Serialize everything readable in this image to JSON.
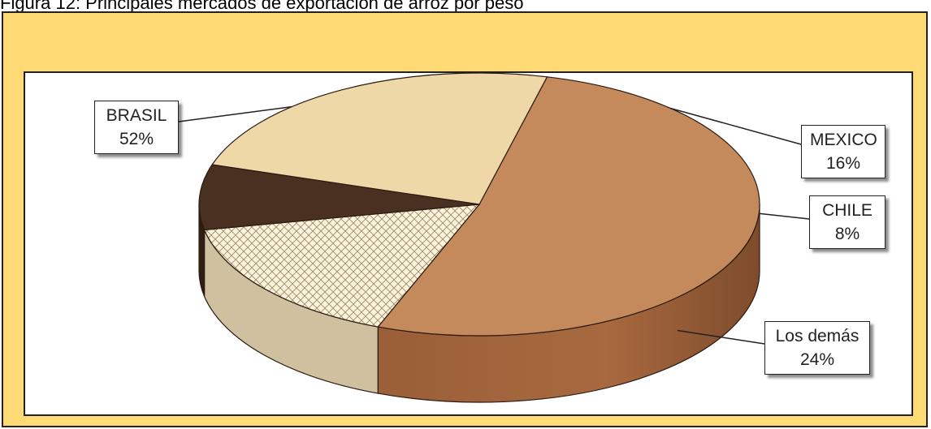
{
  "caption": "Figura 12: Principales mercados de exportación de arroz por peso",
  "chart_data": {
    "type": "pie",
    "title": "",
    "slices": [
      {
        "name": "BRASIL",
        "value": 52,
        "label": "52%",
        "color": "#c58a5c"
      },
      {
        "name": "MEXICO",
        "value": 16,
        "label": "16%",
        "color": "#fbf3dc"
      },
      {
        "name": "CHILE",
        "value": 8,
        "label": "8%",
        "color": "#4a3020"
      },
      {
        "name": "Los demás",
        "value": 24,
        "label": "24%",
        "color": "#efd8a8"
      }
    ],
    "legend": "none",
    "style": "3d-pie"
  }
}
